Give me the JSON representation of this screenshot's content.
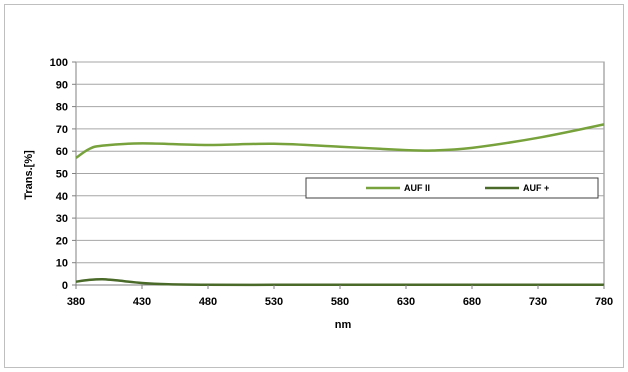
{
  "chart_data": {
    "type": "line",
    "xlabel": "nm",
    "ylabel": "Trans.[%]",
    "xlim": [
      380,
      780
    ],
    "ylim": [
      0,
      100
    ],
    "x_ticks": [
      380,
      430,
      480,
      530,
      580,
      630,
      680,
      730,
      780
    ],
    "y_ticks": [
      0,
      10,
      20,
      30,
      40,
      50,
      60,
      70,
      80,
      90,
      100
    ],
    "grid": "horizontal",
    "legend_position": "right-center",
    "series": [
      {
        "name": "AUF II",
        "color": "#77a23c",
        "x": [
          380,
          390,
          400,
          430,
          480,
          530,
          580,
          630,
          650,
          680,
          730,
          780
        ],
        "y": [
          57,
          61,
          62.5,
          63.5,
          62.8,
          63.3,
          62,
          60.5,
          60.3,
          61.5,
          66,
          72
        ]
      },
      {
        "name": "AUF +",
        "color": "#4a6a2a",
        "x": [
          380,
          390,
          400,
          410,
          430,
          450,
          480,
          530,
          580,
          630,
          680,
          730,
          780
        ],
        "y": [
          1.5,
          2.3,
          2.6,
          2.1,
          0.9,
          0.3,
          0.1,
          0.1,
          0.1,
          0.1,
          0.1,
          0.1,
          0.1
        ]
      }
    ]
  }
}
